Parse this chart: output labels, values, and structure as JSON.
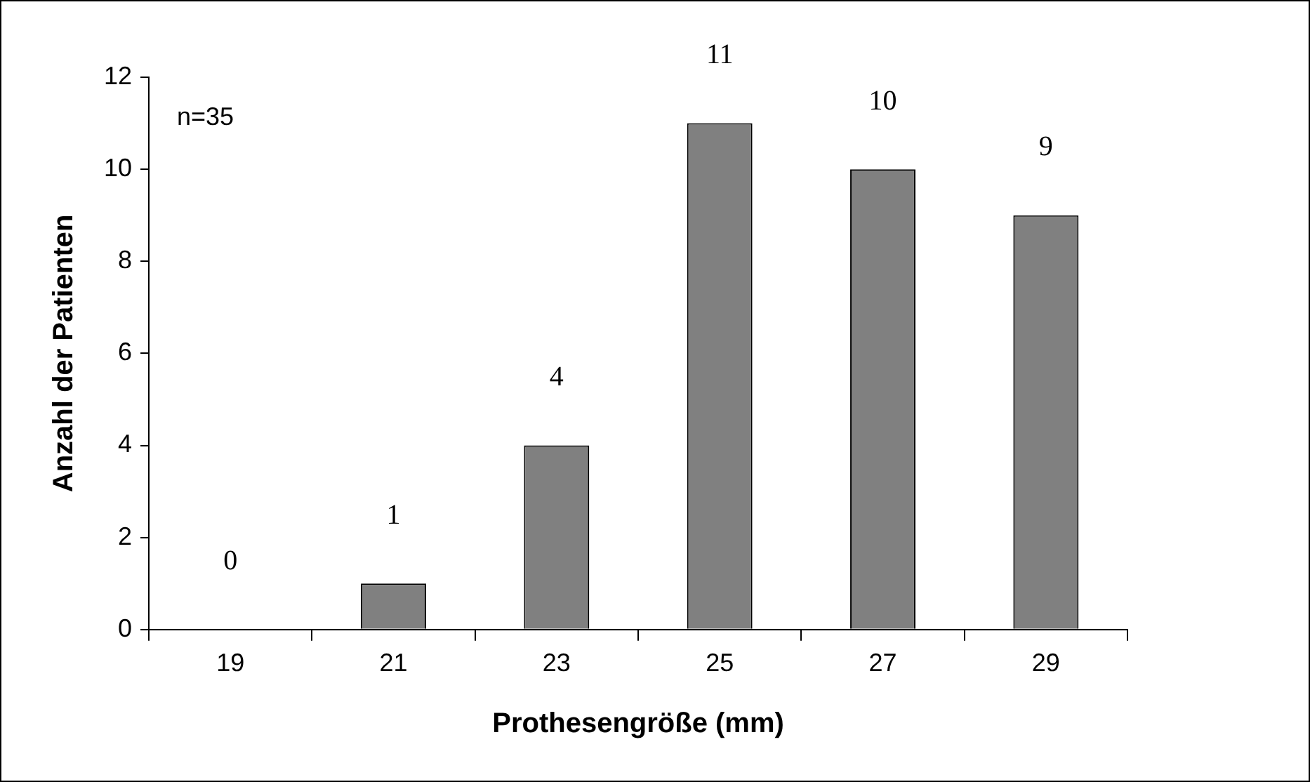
{
  "chart_data": {
    "type": "bar",
    "xlabel": "Prothesengröße (mm)",
    "ylabel": "Anzahl der Patienten",
    "categories": [
      "19",
      "21",
      "23",
      "25",
      "27",
      "29"
    ],
    "values": [
      0,
      1,
      4,
      11,
      10,
      9
    ],
    "color": "#808080",
    "ylim": [
      0,
      12
    ],
    "yticks": [
      0,
      2,
      4,
      6,
      8,
      10,
      12
    ],
    "grid": false,
    "legend": false,
    "data_labels": true,
    "annotations": [
      "n=35"
    ]
  }
}
